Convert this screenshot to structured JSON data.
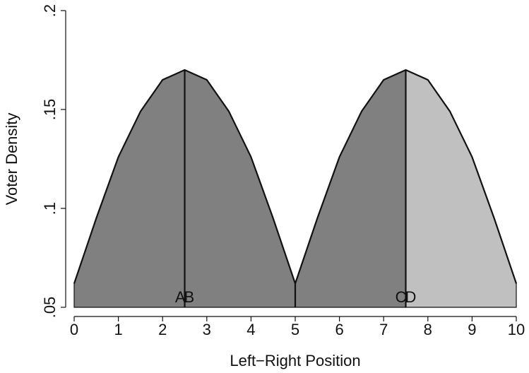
{
  "chart_data": {
    "type": "area",
    "x_label": "Left−Right Position",
    "y_label": "Voter Density",
    "x": [
      0,
      0.5,
      1,
      1.5,
      2,
      2.5,
      3,
      3.5,
      4,
      4.5,
      5,
      5.5,
      6,
      6.5,
      7,
      7.5,
      8,
      8.5,
      9,
      9.5,
      10
    ],
    "values": [
      0.062,
      0.095,
      0.126,
      0.149,
      0.165,
      0.17,
      0.165,
      0.149,
      0.126,
      0.095,
      0.062,
      0.095,
      0.126,
      0.149,
      0.165,
      0.17,
      0.165,
      0.149,
      0.126,
      0.095,
      0.062
    ],
    "regions": [
      {
        "from": 0,
        "to": 7.5,
        "color": "#808080"
      },
      {
        "from": 7.5,
        "to": 10,
        "color": "#c0c0c0"
      }
    ],
    "line_color": "#111111",
    "vlines": [
      2.5,
      5,
      7.5
    ],
    "annotations": [
      {
        "text": "A",
        "x": 2.5,
        "anchor": "end"
      },
      {
        "text": "B",
        "x": 2.5,
        "anchor": "start"
      },
      {
        "text": "C",
        "x": 7.5,
        "anchor": "end"
      },
      {
        "text": "D",
        "x": 7.5,
        "anchor": "start"
      }
    ],
    "xlim": [
      0,
      10
    ],
    "xticks": [
      0,
      1,
      2,
      3,
      4,
      5,
      6,
      7,
      8,
      9,
      10
    ],
    "ylim": [
      0.05,
      0.2
    ],
    "yticks": [
      {
        "value": 0.05,
        "label": ".05"
      },
      {
        "value": 0.1,
        "label": ".1"
      },
      {
        "value": 0.15,
        "label": ".15"
      },
      {
        "value": 0.2,
        "label": ".2"
      }
    ]
  }
}
